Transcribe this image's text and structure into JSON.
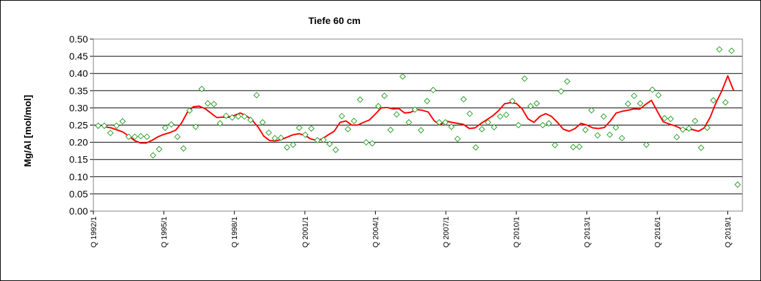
{
  "chart_data": {
    "type": "line",
    "title": "Tiefe  60 cm",
    "xlabel": "",
    "ylabel": "Mg/Al [mol/mol]",
    "ylim": [
      0,
      0.5
    ],
    "yticks": [
      "0.00",
      "0.05",
      "0.10",
      "0.15",
      "0.20",
      "0.25",
      "0.30",
      "0.35",
      "0.40",
      "0.45",
      "0.50"
    ],
    "x_tick_labels": [
      "Q 1992/1",
      "Q 1995/1",
      "Q 1998/1",
      "Q 2001/1",
      "Q 2004/1",
      "Q 2007/1",
      "Q 2010/1",
      "Q 2013/1",
      "Q 2016/1",
      "Q 2019/1"
    ],
    "x_axis": "quarterly periods (Q 1992/1 ... Q 2019/1)",
    "grid": "horizontal",
    "legend": "none",
    "series": [
      {
        "kind": "scatter",
        "marker": "diamond",
        "color": "#2ca02c",
        "points": [
          [
            "1992/1",
            0.248
          ],
          [
            "1992/2",
            0.248
          ],
          [
            "1992/3",
            0.227
          ],
          [
            "1992/4",
            0.248
          ],
          [
            "1993/1",
            0.261
          ],
          [
            "1993/2",
            0.216
          ],
          [
            "1993/3",
            0.216
          ],
          [
            "1993/4",
            0.218
          ],
          [
            "1994/1",
            0.216
          ],
          [
            "1994/2",
            0.162
          ],
          [
            "1994/3",
            0.18
          ],
          [
            "1994/4",
            0.242
          ],
          [
            "1995/1",
            0.252
          ],
          [
            "1995/2",
            0.216
          ],
          [
            "1995/3",
            0.182
          ],
          [
            "1995/4",
            0.292
          ],
          [
            "1996/1",
            0.245
          ],
          [
            "1996/2",
            0.355
          ],
          [
            "1996/3",
            0.313
          ],
          [
            "1996/4",
            0.311
          ],
          [
            "1997/1",
            0.255
          ],
          [
            "1997/2",
            0.277
          ],
          [
            "1997/3",
            0.272
          ],
          [
            "1997/4",
            0.275
          ],
          [
            "1998/1",
            0.275
          ],
          [
            "1998/2",
            0.265
          ],
          [
            "1998/3",
            0.337
          ],
          [
            "1998/4",
            0.258
          ],
          [
            "1999/1",
            0.228
          ],
          [
            "1999/2",
            0.212
          ],
          [
            "1999/3",
            0.213
          ],
          [
            "1999/4",
            0.185
          ],
          [
            "2000/1",
            0.193
          ],
          [
            "2000/2",
            0.242
          ],
          [
            "2000/3",
            0.222
          ],
          [
            "2000/4",
            0.24
          ],
          [
            "2001/1",
            0.206
          ],
          [
            "2001/2",
            0.207
          ],
          [
            "2001/3",
            0.195
          ],
          [
            "2001/4",
            0.178
          ],
          [
            "2002/1",
            0.276
          ],
          [
            "2002/2",
            0.238
          ],
          [
            "2002/3",
            0.262
          ],
          [
            "2002/4",
            0.324
          ],
          [
            "2003/1",
            0.2
          ],
          [
            "2003/2",
            0.197
          ],
          [
            "2003/3",
            0.305
          ],
          [
            "2003/4",
            0.335
          ],
          [
            "2004/1",
            0.236
          ],
          [
            "2004/2",
            0.281
          ],
          [
            "2004/3",
            0.391
          ],
          [
            "2004/4",
            0.258
          ],
          [
            "2005/1",
            0.295
          ],
          [
            "2005/2",
            0.235
          ],
          [
            "2005/3",
            0.32
          ],
          [
            "2005/4",
            0.352
          ],
          [
            "2006/1",
            0.258
          ],
          [
            "2006/2",
            0.258
          ],
          [
            "2006/3",
            0.245
          ],
          [
            "2006/4",
            0.21
          ],
          [
            "2007/1",
            0.325
          ],
          [
            "2007/2",
            0.283
          ],
          [
            "2007/3",
            0.185
          ],
          [
            "2007/4",
            0.238
          ],
          [
            "2008/1",
            0.258
          ],
          [
            "2008/2",
            0.244
          ],
          [
            "2008/3",
            0.275
          ],
          [
            "2008/4",
            0.28
          ],
          [
            "2009/1",
            0.32
          ],
          [
            "2009/2",
            0.25
          ],
          [
            "2009/3",
            0.385
          ],
          [
            "2009/4",
            0.305
          ],
          [
            "2010/1",
            0.313
          ],
          [
            "2010/2",
            0.25
          ],
          [
            "2010/3",
            0.255
          ],
          [
            "2010/4",
            0.192
          ],
          [
            "2011/1",
            0.348
          ],
          [
            "2011/2",
            0.377
          ],
          [
            "2011/3",
            0.186
          ],
          [
            "2011/4",
            0.187
          ],
          [
            "2012/1",
            0.236
          ],
          [
            "2012/2",
            0.293
          ],
          [
            "2012/3",
            0.22
          ],
          [
            "2012/4",
            0.275
          ],
          [
            "2013/1",
            0.222
          ],
          [
            "2013/2",
            0.243
          ],
          [
            "2013/3",
            0.212
          ],
          [
            "2013/4",
            0.312
          ],
          [
            "2014/1",
            0.335
          ],
          [
            "2014/2",
            0.313
          ],
          [
            "2014/3",
            0.193
          ],
          [
            "2014/4",
            0.353
          ],
          [
            "2015/1",
            0.337
          ],
          [
            "2015/2",
            0.27
          ],
          [
            "2015/3",
            0.268
          ],
          [
            "2015/4",
            0.215
          ],
          [
            "2016/1",
            0.237
          ],
          [
            "2016/2",
            0.24
          ],
          [
            "2016/3",
            0.262
          ],
          [
            "2016/4",
            0.184
          ],
          [
            "2017/1",
            0.242
          ],
          [
            "2017/2",
            0.322
          ],
          [
            "2017/3",
            0.47
          ],
          [
            "2017/4",
            0.316
          ],
          [
            "2018/1",
            0.466
          ],
          [
            "2018/2",
            0.077
          ]
        ]
      },
      {
        "kind": "line",
        "color": "#ff0000",
        "points": [
          [
            "1992/3",
            0.245
          ],
          [
            "1992/4",
            0.242
          ],
          [
            "1993/1",
            0.236
          ],
          [
            "1993/2",
            0.23
          ],
          [
            "1993/3",
            0.218
          ],
          [
            "1993/4",
            0.205
          ],
          [
            "1994/1",
            0.198
          ],
          [
            "1994/2",
            0.198
          ],
          [
            "1994/3",
            0.206
          ],
          [
            "1994/4",
            0.216
          ],
          [
            "1995/1",
            0.223
          ],
          [
            "1995/2",
            0.228
          ],
          [
            "1995/3",
            0.235
          ],
          [
            "1995/4",
            0.256
          ],
          [
            "1996/1",
            0.287
          ],
          [
            "1996/2",
            0.303
          ],
          [
            "1996/3",
            0.305
          ],
          [
            "1996/4",
            0.298
          ],
          [
            "1997/1",
            0.285
          ],
          [
            "1997/2",
            0.272
          ],
          [
            "1997/3",
            0.273
          ],
          [
            "1997/4",
            0.273
          ],
          [
            "1998/1",
            0.278
          ],
          [
            "1998/2",
            0.285
          ],
          [
            "1998/3",
            0.277
          ],
          [
            "1998/4",
            0.265
          ],
          [
            "1999/1",
            0.245
          ],
          [
            "1999/2",
            0.218
          ],
          [
            "1999/3",
            0.205
          ],
          [
            "1999/4",
            0.204
          ],
          [
            "2000/1",
            0.208
          ],
          [
            "2000/2",
            0.215
          ],
          [
            "2000/3",
            0.222
          ],
          [
            "2000/4",
            0.225
          ],
          [
            "2001/1",
            0.22
          ],
          [
            "2001/2",
            0.21
          ],
          [
            "2001/3",
            0.205
          ],
          [
            "2001/4",
            0.21
          ],
          [
            "2002/1",
            0.222
          ],
          [
            "2002/2",
            0.232
          ],
          [
            "2002/3",
            0.258
          ],
          [
            "2002/4",
            0.262
          ],
          [
            "2003/1",
            0.25
          ],
          [
            "2003/2",
            0.25
          ],
          [
            "2003/3",
            0.258
          ],
          [
            "2003/4",
            0.265
          ],
          [
            "2004/1",
            0.282
          ],
          [
            "2004/2",
            0.3
          ],
          [
            "2004/3",
            0.301
          ],
          [
            "2004/4",
            0.297
          ],
          [
            "2005/1",
            0.298
          ],
          [
            "2005/2",
            0.285
          ],
          [
            "2005/3",
            0.287
          ],
          [
            "2005/4",
            0.295
          ],
          [
            "2006/1",
            0.293
          ],
          [
            "2006/2",
            0.288
          ],
          [
            "2006/3",
            0.263
          ],
          [
            "2006/4",
            0.25
          ],
          [
            "2007/1",
            0.262
          ],
          [
            "2007/2",
            0.258
          ],
          [
            "2007/3",
            0.255
          ],
          [
            "2007/4",
            0.252
          ],
          [
            "2008/1",
            0.24
          ],
          [
            "2008/2",
            0.242
          ],
          [
            "2008/3",
            0.255
          ],
          [
            "2008/4",
            0.266
          ],
          [
            "2009/1",
            0.277
          ],
          [
            "2009/2",
            0.292
          ],
          [
            "2009/3",
            0.312
          ],
          [
            "2009/4",
            0.315
          ],
          [
            "2010/1",
            0.313
          ],
          [
            "2010/2",
            0.297
          ],
          [
            "2010/3",
            0.268
          ],
          [
            "2010/4",
            0.258
          ],
          [
            "2011/1",
            0.275
          ],
          [
            "2011/2",
            0.283
          ],
          [
            "2011/3",
            0.275
          ],
          [
            "2011/4",
            0.258
          ],
          [
            "2012/1",
            0.238
          ],
          [
            "2012/2",
            0.232
          ],
          [
            "2012/3",
            0.24
          ],
          [
            "2012/4",
            0.255
          ],
          [
            "2013/1",
            0.25
          ],
          [
            "2013/2",
            0.242
          ],
          [
            "2013/3",
            0.24
          ],
          [
            "2013/4",
            0.243
          ],
          [
            "2014/1",
            0.262
          ],
          [
            "2014/2",
            0.285
          ],
          [
            "2014/3",
            0.29
          ],
          [
            "2014/4",
            0.293
          ],
          [
            "2015/1",
            0.297
          ],
          [
            "2015/2",
            0.296
          ],
          [
            "2015/3",
            0.31
          ],
          [
            "2015/4",
            0.322
          ],
          [
            "2016/1",
            0.29
          ],
          [
            "2016/2",
            0.26
          ],
          [
            "2016/3",
            0.253
          ],
          [
            "2016/4",
            0.248
          ],
          [
            "2017/1",
            0.24
          ],
          [
            "2017/2",
            0.237
          ],
          [
            "2017/3",
            0.237
          ],
          [
            "2017/4",
            0.232
          ],
          [
            "2018/1",
            0.242
          ],
          [
            "2018/2",
            0.273
          ],
          [
            "2018/3",
            0.315
          ],
          [
            "2018/4",
            0.35
          ],
          [
            "2019/1",
            0.393
          ],
          [
            "2019/2",
            0.35
          ]
        ]
      }
    ]
  }
}
